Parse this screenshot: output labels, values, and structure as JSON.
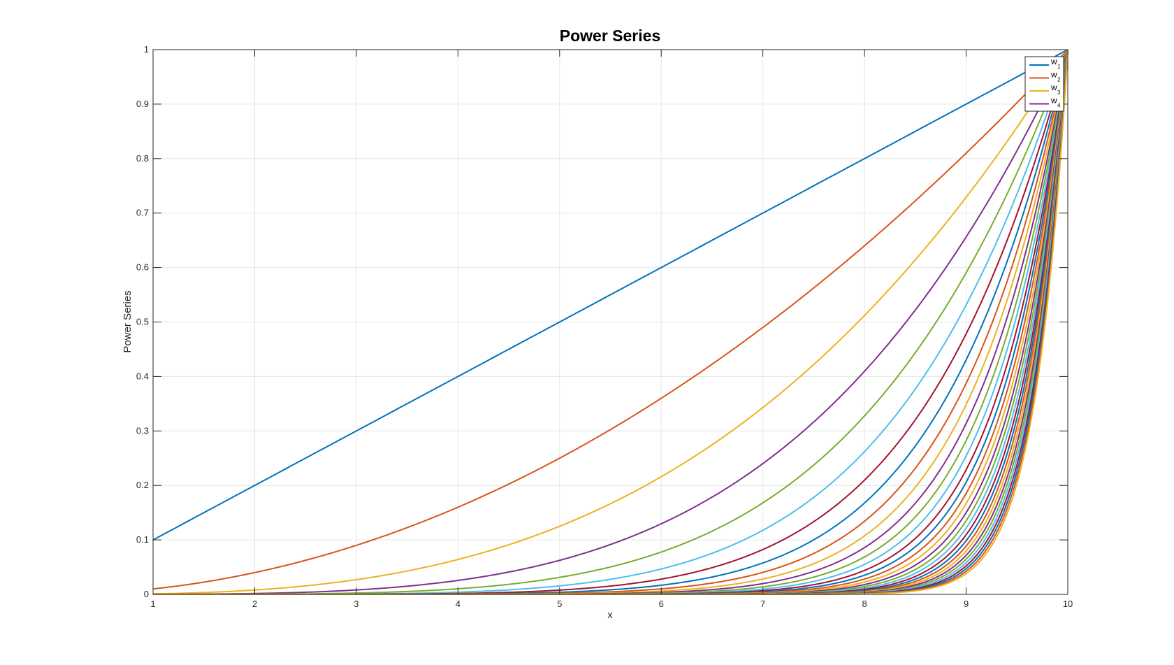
{
  "chart_data": {
    "type": "line",
    "title": "Power Series",
    "xlabel": "x",
    "ylabel": "Power Series",
    "xlim": [
      1,
      10
    ],
    "ylim": [
      0,
      1
    ],
    "x_ticks": [
      "1",
      "2",
      "3",
      "4",
      "5",
      "6",
      "7",
      "8",
      "9",
      "10"
    ],
    "y_ticks": [
      "0",
      "0.1",
      "0.2",
      "0.3",
      "0.4",
      "0.5",
      "0.6",
      "0.7",
      "0.8",
      "0.9",
      "1"
    ],
    "grid": true,
    "legend_position": "top-right",
    "function": "w_n(x) = (x/10)^n",
    "x_samples": [
      1,
      1.5,
      2,
      2.5,
      3,
      3.5,
      4,
      4.5,
      5,
      5.5,
      6,
      6.5,
      7,
      7.5,
      8,
      8.5,
      9,
      9.5,
      10
    ],
    "legend": [
      {
        "base": "w",
        "sub": "1",
        "color": "#0072BD"
      },
      {
        "base": "w",
        "sub": "2",
        "color": "#D95319"
      },
      {
        "base": "w",
        "sub": "3",
        "color": "#EDB120"
      },
      {
        "base": "w",
        "sub": "4",
        "color": "#7E2F8E"
      }
    ],
    "series": [
      {
        "exponent": 1,
        "color": "#0072BD"
      },
      {
        "exponent": 2,
        "color": "#D95319"
      },
      {
        "exponent": 3,
        "color": "#EDB120"
      },
      {
        "exponent": 4,
        "color": "#7E2F8E"
      },
      {
        "exponent": 5,
        "color": "#77AC30"
      },
      {
        "exponent": 6,
        "color": "#4DBEEE"
      },
      {
        "exponent": 7,
        "color": "#A2142F"
      },
      {
        "exponent": 8,
        "color": "#0072BD"
      },
      {
        "exponent": 9,
        "color": "#D95319"
      },
      {
        "exponent": 10,
        "color": "#EDB120"
      },
      {
        "exponent": 11,
        "color": "#7E2F8E"
      },
      {
        "exponent": 12,
        "color": "#77AC30"
      },
      {
        "exponent": 13,
        "color": "#4DBEEE"
      },
      {
        "exponent": 14,
        "color": "#A2142F"
      },
      {
        "exponent": 15,
        "color": "#0072BD"
      },
      {
        "exponent": 16,
        "color": "#D95319"
      },
      {
        "exponent": 17,
        "color": "#EDB120"
      },
      {
        "exponent": 18,
        "color": "#7E2F8E"
      },
      {
        "exponent": 19,
        "color": "#77AC30"
      },
      {
        "exponent": 20,
        "color": "#4DBEEE"
      },
      {
        "exponent": 21,
        "color": "#A2142F"
      },
      {
        "exponent": 22,
        "color": "#0072BD"
      },
      {
        "exponent": 23,
        "color": "#D95319"
      },
      {
        "exponent": 24,
        "color": "#EDB120"
      },
      {
        "exponent": 25,
        "color": "#7E2F8E"
      },
      {
        "exponent": 26,
        "color": "#77AC30"
      },
      {
        "exponent": 27,
        "color": "#4DBEEE"
      },
      {
        "exponent": 28,
        "color": "#A2142F"
      },
      {
        "exponent": 29,
        "color": "#0072BD"
      },
      {
        "exponent": 30,
        "color": "#D95319"
      },
      {
        "exponent": 31,
        "color": "#EDB120"
      }
    ]
  }
}
